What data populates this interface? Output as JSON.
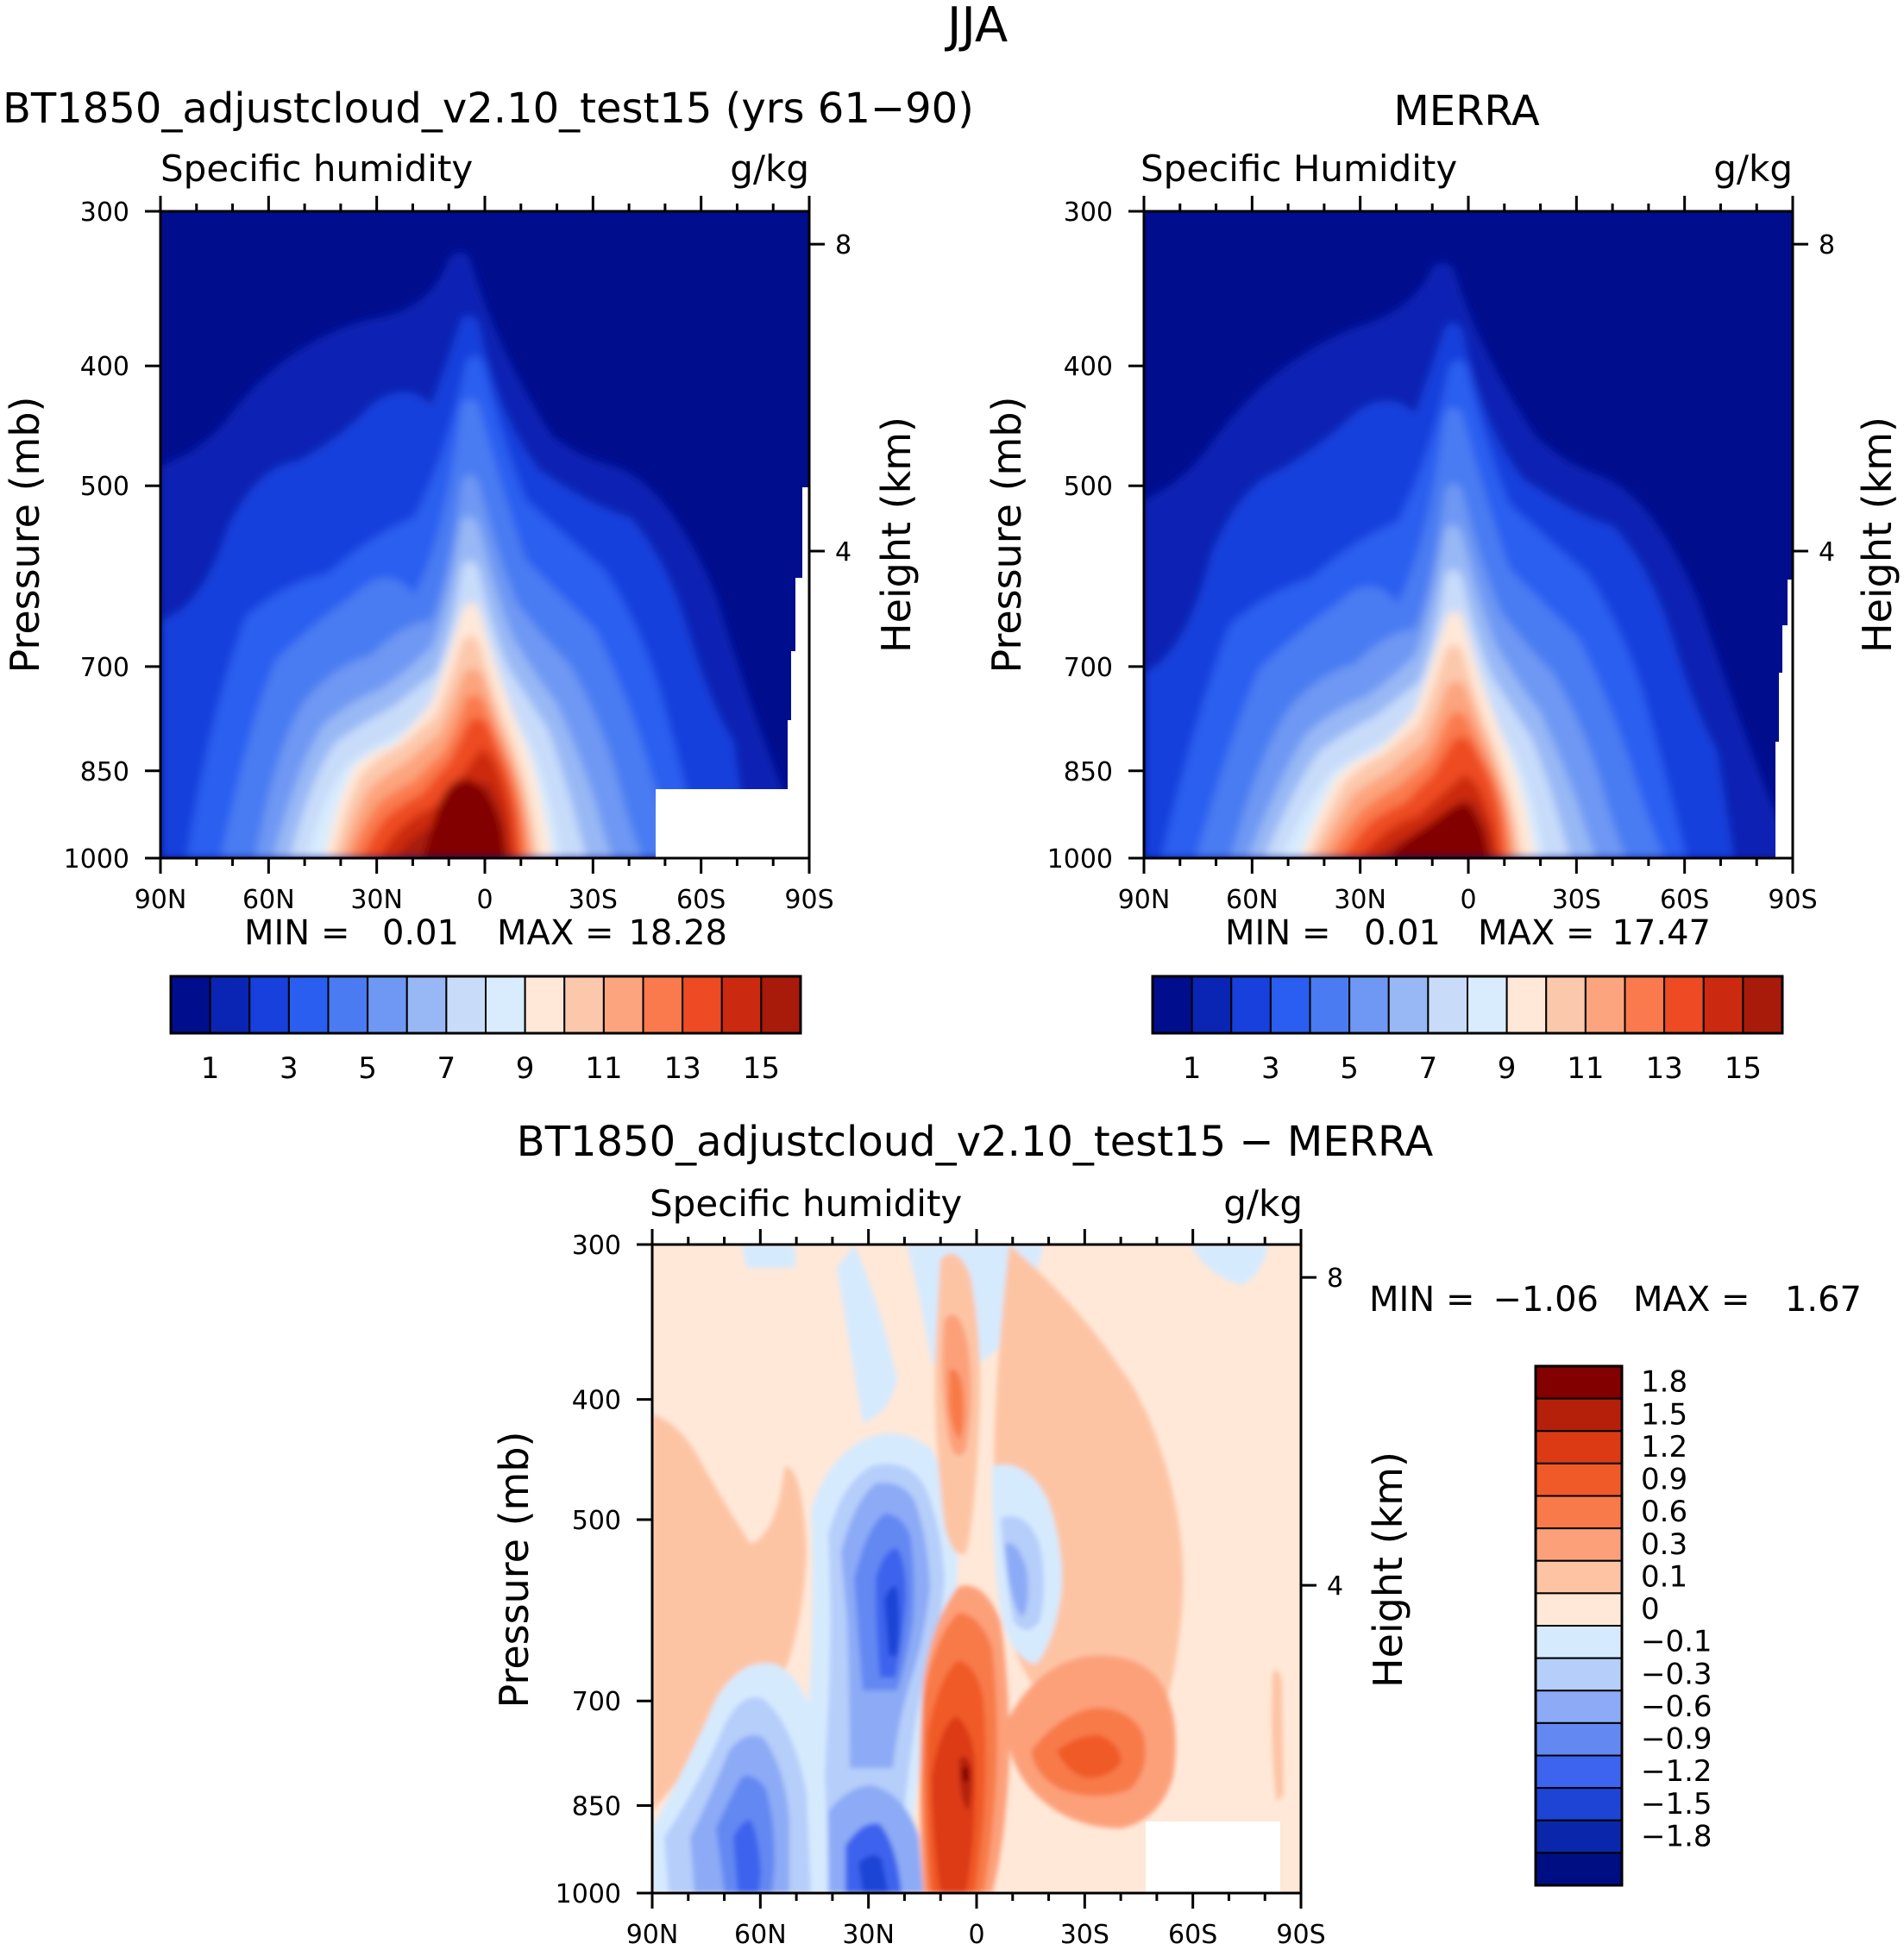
{
  "figure": {
    "title": "JJA"
  },
  "chart_data": [
    {
      "id": "model",
      "type": "heatmap",
      "title": "BT1850_adjustcloud_v2.10_test15 (yrs 61−90)",
      "left_label": "Specific humidity",
      "units": "g/kg",
      "ylabel": "Pressure (mb)",
      "ylabel_right": "Height (km)",
      "x_ticks": [
        "90N",
        "60N",
        "30N",
        "0",
        "30S",
        "60S",
        "90S"
      ],
      "x_range_deg": [
        90,
        -90
      ],
      "y_ticks": [
        300,
        400,
        500,
        700,
        850,
        1000
      ],
      "y_range_mb": [
        300,
        1000
      ],
      "right_ticks_km": [
        8,
        4
      ],
      "min_label": "MIN =",
      "min_value": "0.01",
      "max_label": "MAX =",
      "max_value": "18.28",
      "color_levels": [
        1,
        2,
        3,
        4,
        5,
        6,
        7,
        8,
        9,
        10,
        11,
        12,
        13,
        14,
        15
      ],
      "colorbar_labels": [
        "1",
        "3",
        "5",
        "7",
        "9",
        "11",
        "13",
        "15"
      ],
      "colors": [
        "#000e8e",
        "#0a24b4",
        "#1740dc",
        "#2a5ef0",
        "#4a7bf2",
        "#6e98f3",
        "#98b8f5",
        "#c8dcfa",
        "#d8ecfe",
        "#ffe8d8",
        "#fcc8ac",
        "#fca47e",
        "#fa7a4e",
        "#ee4b24",
        "#cc2a10",
        "#a81a0a",
        "#820000"
      ]
    },
    {
      "id": "merra",
      "type": "heatmap",
      "title": "MERRA",
      "left_label": "Specific Humidity",
      "units": "g/kg",
      "ylabel": "Pressure (mb)",
      "ylabel_right": "Height (km)",
      "x_ticks": [
        "90N",
        "60N",
        "30N",
        "0",
        "30S",
        "60S",
        "90S"
      ],
      "x_range_deg": [
        90,
        -90
      ],
      "y_ticks": [
        300,
        400,
        500,
        700,
        850,
        1000
      ],
      "y_range_mb": [
        300,
        1000
      ],
      "right_ticks_km": [
        8,
        4
      ],
      "min_label": "MIN =",
      "min_value": "0.01",
      "max_label": "MAX =",
      "max_value": "17.47",
      "color_levels": [
        1,
        2,
        3,
        4,
        5,
        6,
        7,
        8,
        9,
        10,
        11,
        12,
        13,
        14,
        15
      ],
      "colorbar_labels": [
        "1",
        "3",
        "5",
        "7",
        "9",
        "11",
        "13",
        "15"
      ],
      "colors": [
        "#000e8e",
        "#0a24b4",
        "#1740dc",
        "#2a5ef0",
        "#4a7bf2",
        "#6e98f3",
        "#98b8f5",
        "#c8dcfa",
        "#d8ecfe",
        "#ffe8d8",
        "#fcc8ac",
        "#fca47e",
        "#fa7a4e",
        "#ee4b24",
        "#cc2a10",
        "#a81a0a",
        "#820000"
      ]
    },
    {
      "id": "diff",
      "type": "heatmap",
      "title": "BT1850_adjustcloud_v2.10_test15 − MERRA",
      "left_label": "Specific humidity",
      "units": "g/kg",
      "ylabel": "Pressure (mb)",
      "ylabel_right": "Height (km)",
      "x_ticks": [
        "90N",
        "60N",
        "30N",
        "0",
        "30S",
        "60S",
        "90S"
      ],
      "x_range_deg": [
        90,
        -90
      ],
      "y_ticks": [
        300,
        400,
        500,
        700,
        850,
        1000
      ],
      "y_range_mb": [
        300,
        1000
      ],
      "right_ticks_km": [
        8,
        4
      ],
      "min_label": "MIN =",
      "min_value": "−1.06",
      "max_label": "MAX =",
      "max_value": "1.67",
      "color_levels": [
        -1.8,
        -1.5,
        -1.2,
        -0.9,
        -0.6,
        -0.3,
        -0.1,
        0,
        0.1,
        0.3,
        0.6,
        0.9,
        1.2,
        1.5,
        1.8
      ],
      "colorbar_labels": [
        "1.8",
        "1.5",
        "1.2",
        "0.9",
        "0.6",
        "0.3",
        "0.1",
        "0",
        "−0.1",
        "−0.3",
        "−0.6",
        "−0.9",
        "−1.2",
        "−1.5",
        "−1.8"
      ],
      "colors_top_to_bottom": [
        "#820000",
        "#b4200a",
        "#dc3a14",
        "#f05a28",
        "#f87a4a",
        "#fca07a",
        "#fdc4a4",
        "#ffe8d8",
        "#d6eafe",
        "#b6cefa",
        "#8caaf6",
        "#6488f2",
        "#3c64ee",
        "#1e44d6",
        "#0a26aa",
        "#000e84"
      ]
    }
  ]
}
